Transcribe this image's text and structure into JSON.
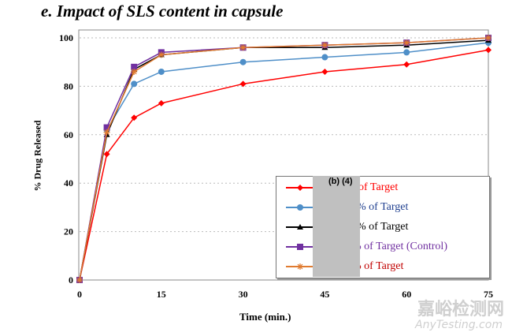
{
  "chart_data": {
    "type": "line",
    "title": "e.   Impact of SLS content in capsule",
    "xlabel": "Time (min.)",
    "ylabel": "% Drug Released",
    "x": [
      0,
      5,
      10,
      15,
      30,
      45,
      60,
      75
    ],
    "xticks": [
      0,
      15,
      30,
      45,
      60,
      75
    ],
    "yticks": [
      0,
      20,
      40,
      60,
      80,
      100
    ],
    "xlim": [
      0,
      75
    ],
    "ylim": [
      0,
      100
    ],
    "grid": "horizontal dotted",
    "legend_placement": "bottom-right",
    "series": [
      {
        "name": "of Target",
        "color": "#ff0000",
        "marker": "diamond",
        "values": [
          0,
          52,
          67,
          73,
          81,
          86,
          89,
          95
        ]
      },
      {
        "name": "% of Target",
        "color": "#4f8fc8",
        "marker": "circle",
        "values": [
          0,
          62,
          81,
          86,
          90,
          92,
          94,
          98
        ]
      },
      {
        "name": "% of Target",
        "color": "#000000",
        "marker": "triangle",
        "values": [
          0,
          60,
          87,
          93,
          96,
          96,
          97,
          99
        ]
      },
      {
        "name": "% of Target (Control)",
        "color": "#7030a0",
        "marker": "square",
        "values": [
          0,
          63,
          88,
          94,
          96,
          97,
          98,
          100
        ]
      },
      {
        "name": "% of Target",
        "color": "#e07b30",
        "marker": "star",
        "values": [
          0,
          61,
          86,
          93,
          96,
          97,
          98,
          100
        ]
      }
    ],
    "legend_text_colors": [
      "#ff0000",
      "#1f3f8f",
      "#000000",
      "#7030a0",
      "#c00000"
    ]
  },
  "redaction_label": "(b) (4)",
  "watermark": {
    "line1": "嘉峪检测网",
    "line2": "AnyTesting.com"
  }
}
